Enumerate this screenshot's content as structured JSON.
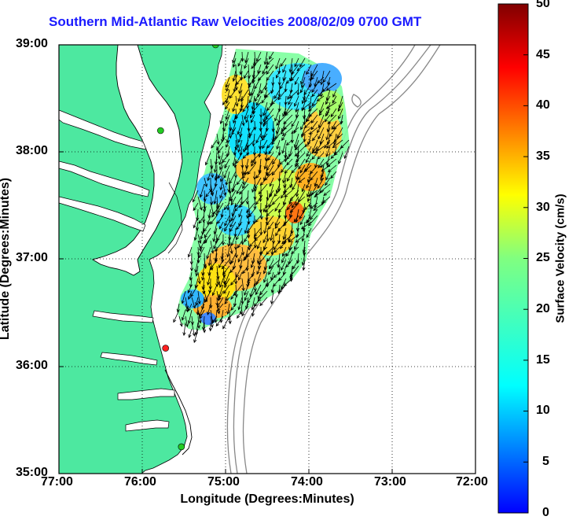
{
  "title": "Southern Mid-Atlantic Raw Velocities 2008/02/09 0700 GMT",
  "axes": {
    "xlabel": "Longitude (Degrees:Minutes)",
    "ylabel": "Latitude (Degrees:Minutes)",
    "x_ticks": [
      "77:00",
      "76:00",
      "75:00",
      "74:00",
      "73:00",
      "72:00"
    ],
    "y_ticks": [
      "39:00",
      "38:00",
      "37:00",
      "36:00",
      "35:00"
    ],
    "x_range": [
      -77,
      -72
    ],
    "y_range": [
      35,
      39
    ],
    "grid": "dotted"
  },
  "colorbar": {
    "label": "Surface Velocity (cm/s)",
    "ticks": [
      "50",
      "45",
      "40",
      "35",
      "30",
      "25",
      "20",
      "15",
      "10",
      "5",
      "0"
    ],
    "range": [
      0,
      50
    ],
    "colormap": "jet"
  },
  "colors": {
    "land": "#4de8a0",
    "coastline": "#000000",
    "bathymetry": "#888888",
    "title": "#1a1aff",
    "arrows": "#000000",
    "station_active": "#22cc22",
    "station_inactive": "#ff2020"
  },
  "stations": [
    {
      "lon": -75.12,
      "lat": 39.0,
      "status": "active"
    },
    {
      "lon": -75.78,
      "lat": 38.2,
      "status": "active"
    },
    {
      "lon": -75.72,
      "lat": 36.17,
      "status": "inactive"
    },
    {
      "lon": -75.53,
      "lat": 35.25,
      "status": "active"
    }
  ]
}
